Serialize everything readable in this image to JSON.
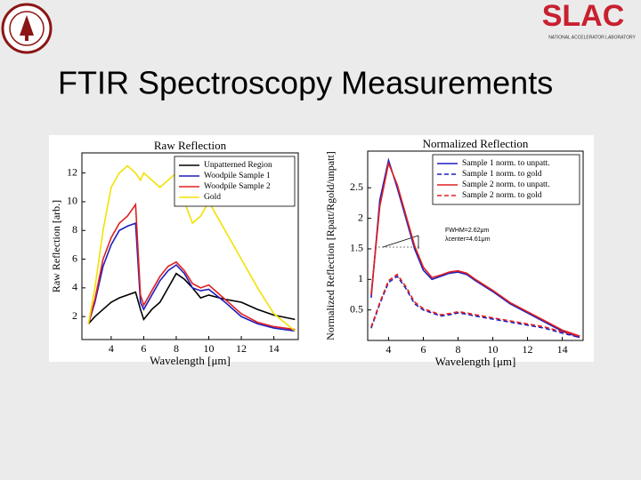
{
  "title": "FTIR Spectroscopy Measurements",
  "logo": {
    "text": "SLAC",
    "subtitle": "NATIONAL ACCELERATOR LABORATORY"
  },
  "chart_data": [
    {
      "type": "line",
      "title": "Raw Reflection",
      "xlabel": "Wavelength [μm]",
      "ylabel": "Raw Reflection [arb.]",
      "x": [
        2.6,
        3,
        3.5,
        4,
        4.5,
        5,
        5.5,
        5.8,
        6,
        6.5,
        7,
        7.5,
        8,
        8.5,
        9,
        9.5,
        10,
        11,
        12,
        13,
        14,
        15.3
      ],
      "series": [
        {
          "name": "Unpatterned Region",
          "color": "#000000",
          "dash": false,
          "values": [
            1.5,
            2,
            2.5,
            3,
            3.3,
            3.5,
            3.7,
            2.5,
            1.8,
            2.5,
            3,
            4,
            5,
            4.6,
            4,
            3.3,
            3.5,
            3.2,
            3,
            2.5,
            2.1,
            1.8
          ]
        },
        {
          "name": "Woodpile Sample 1",
          "color": "#1f1fbf",
          "dash": false,
          "values": [
            1.5,
            3,
            5.5,
            7,
            8,
            8.3,
            8.5,
            3,
            2.5,
            3.5,
            4.5,
            5.2,
            5.6,
            5,
            4,
            3.8,
            3.9,
            3,
            2,
            1.5,
            1.2,
            1
          ]
        },
        {
          "name": "Woodpile Sample 2",
          "color": "#e02020",
          "dash": false,
          "values": [
            1.5,
            3.2,
            6,
            7.5,
            8.5,
            9,
            9.8,
            3.5,
            2.8,
            3.8,
            4.8,
            5.5,
            5.8,
            5.2,
            4.3,
            4,
            4.2,
            3.2,
            2.2,
            1.6,
            1.3,
            1.1
          ]
        },
        {
          "name": "Gold",
          "color": "#f2e200",
          "dash": false,
          "values": [
            1.5,
            4,
            8,
            11,
            12,
            12.5,
            12,
            11.5,
            12,
            11.5,
            11,
            11.5,
            12,
            10,
            8.5,
            9,
            10,
            8,
            6,
            4,
            2.2,
            1
          ]
        }
      ],
      "xlim": [
        2.2,
        15.5
      ],
      "ylim": [
        0.4,
        13.4
      ],
      "xticks": [
        4,
        6,
        8,
        10,
        12,
        14
      ],
      "yticks": [
        2,
        4,
        6,
        8,
        10,
        12
      ],
      "legend": "upper right"
    },
    {
      "type": "line",
      "title": "Normalized Reflection",
      "xlabel": "Wavelength [μm]",
      "ylabel": "Normalized Reflection [Rpatt/Rgold/unpatt]",
      "x": [
        3,
        3.5,
        4,
        4.5,
        5,
        5.5,
        6,
        6.5,
        7,
        7.5,
        8,
        8.5,
        9,
        10,
        11,
        12,
        13,
        14,
        15
      ],
      "series": [
        {
          "name": "Sample 1 norm. to unpatt.",
          "color": "#1f1fbf",
          "dash": false,
          "values": [
            0.7,
            2.3,
            2.95,
            2.5,
            2.0,
            1.5,
            1.15,
            1.0,
            1.05,
            1.1,
            1.12,
            1.08,
            0.98,
            0.8,
            0.6,
            0.45,
            0.3,
            0.15,
            0.05
          ]
        },
        {
          "name": "Sample 1 norm. to gold",
          "color": "#1f1fbf",
          "dash": true,
          "values": [
            0.2,
            0.6,
            0.95,
            1.05,
            0.85,
            0.6,
            0.5,
            0.45,
            0.4,
            0.42,
            0.45,
            0.43,
            0.4,
            0.35,
            0.3,
            0.25,
            0.2,
            0.12,
            0.05
          ]
        },
        {
          "name": "Sample 2 norm. to unpatt.",
          "color": "#e02020",
          "dash": false,
          "values": [
            0.75,
            2.2,
            2.9,
            2.55,
            2.05,
            1.55,
            1.2,
            1.03,
            1.07,
            1.12,
            1.14,
            1.1,
            1.0,
            0.82,
            0.62,
            0.47,
            0.32,
            0.17,
            0.07
          ]
        },
        {
          "name": "Sample 2 norm. to gold",
          "color": "#e02020",
          "dash": true,
          "values": [
            0.22,
            0.62,
            0.98,
            1.08,
            0.88,
            0.63,
            0.52,
            0.47,
            0.42,
            0.44,
            0.47,
            0.45,
            0.42,
            0.37,
            0.32,
            0.27,
            0.22,
            0.14,
            0.07
          ]
        }
      ],
      "xlim": [
        2.8,
        15.2
      ],
      "ylim": [
        0,
        3.1
      ],
      "xticks": [
        4,
        6,
        8,
        10,
        12,
        14
      ],
      "yticks": [
        0.5,
        1,
        1.5,
        2,
        2.5
      ],
      "legend": "upper right",
      "annotations": [
        "FWHM=2.62μm",
        "λcenter=4.61μm"
      ]
    }
  ]
}
